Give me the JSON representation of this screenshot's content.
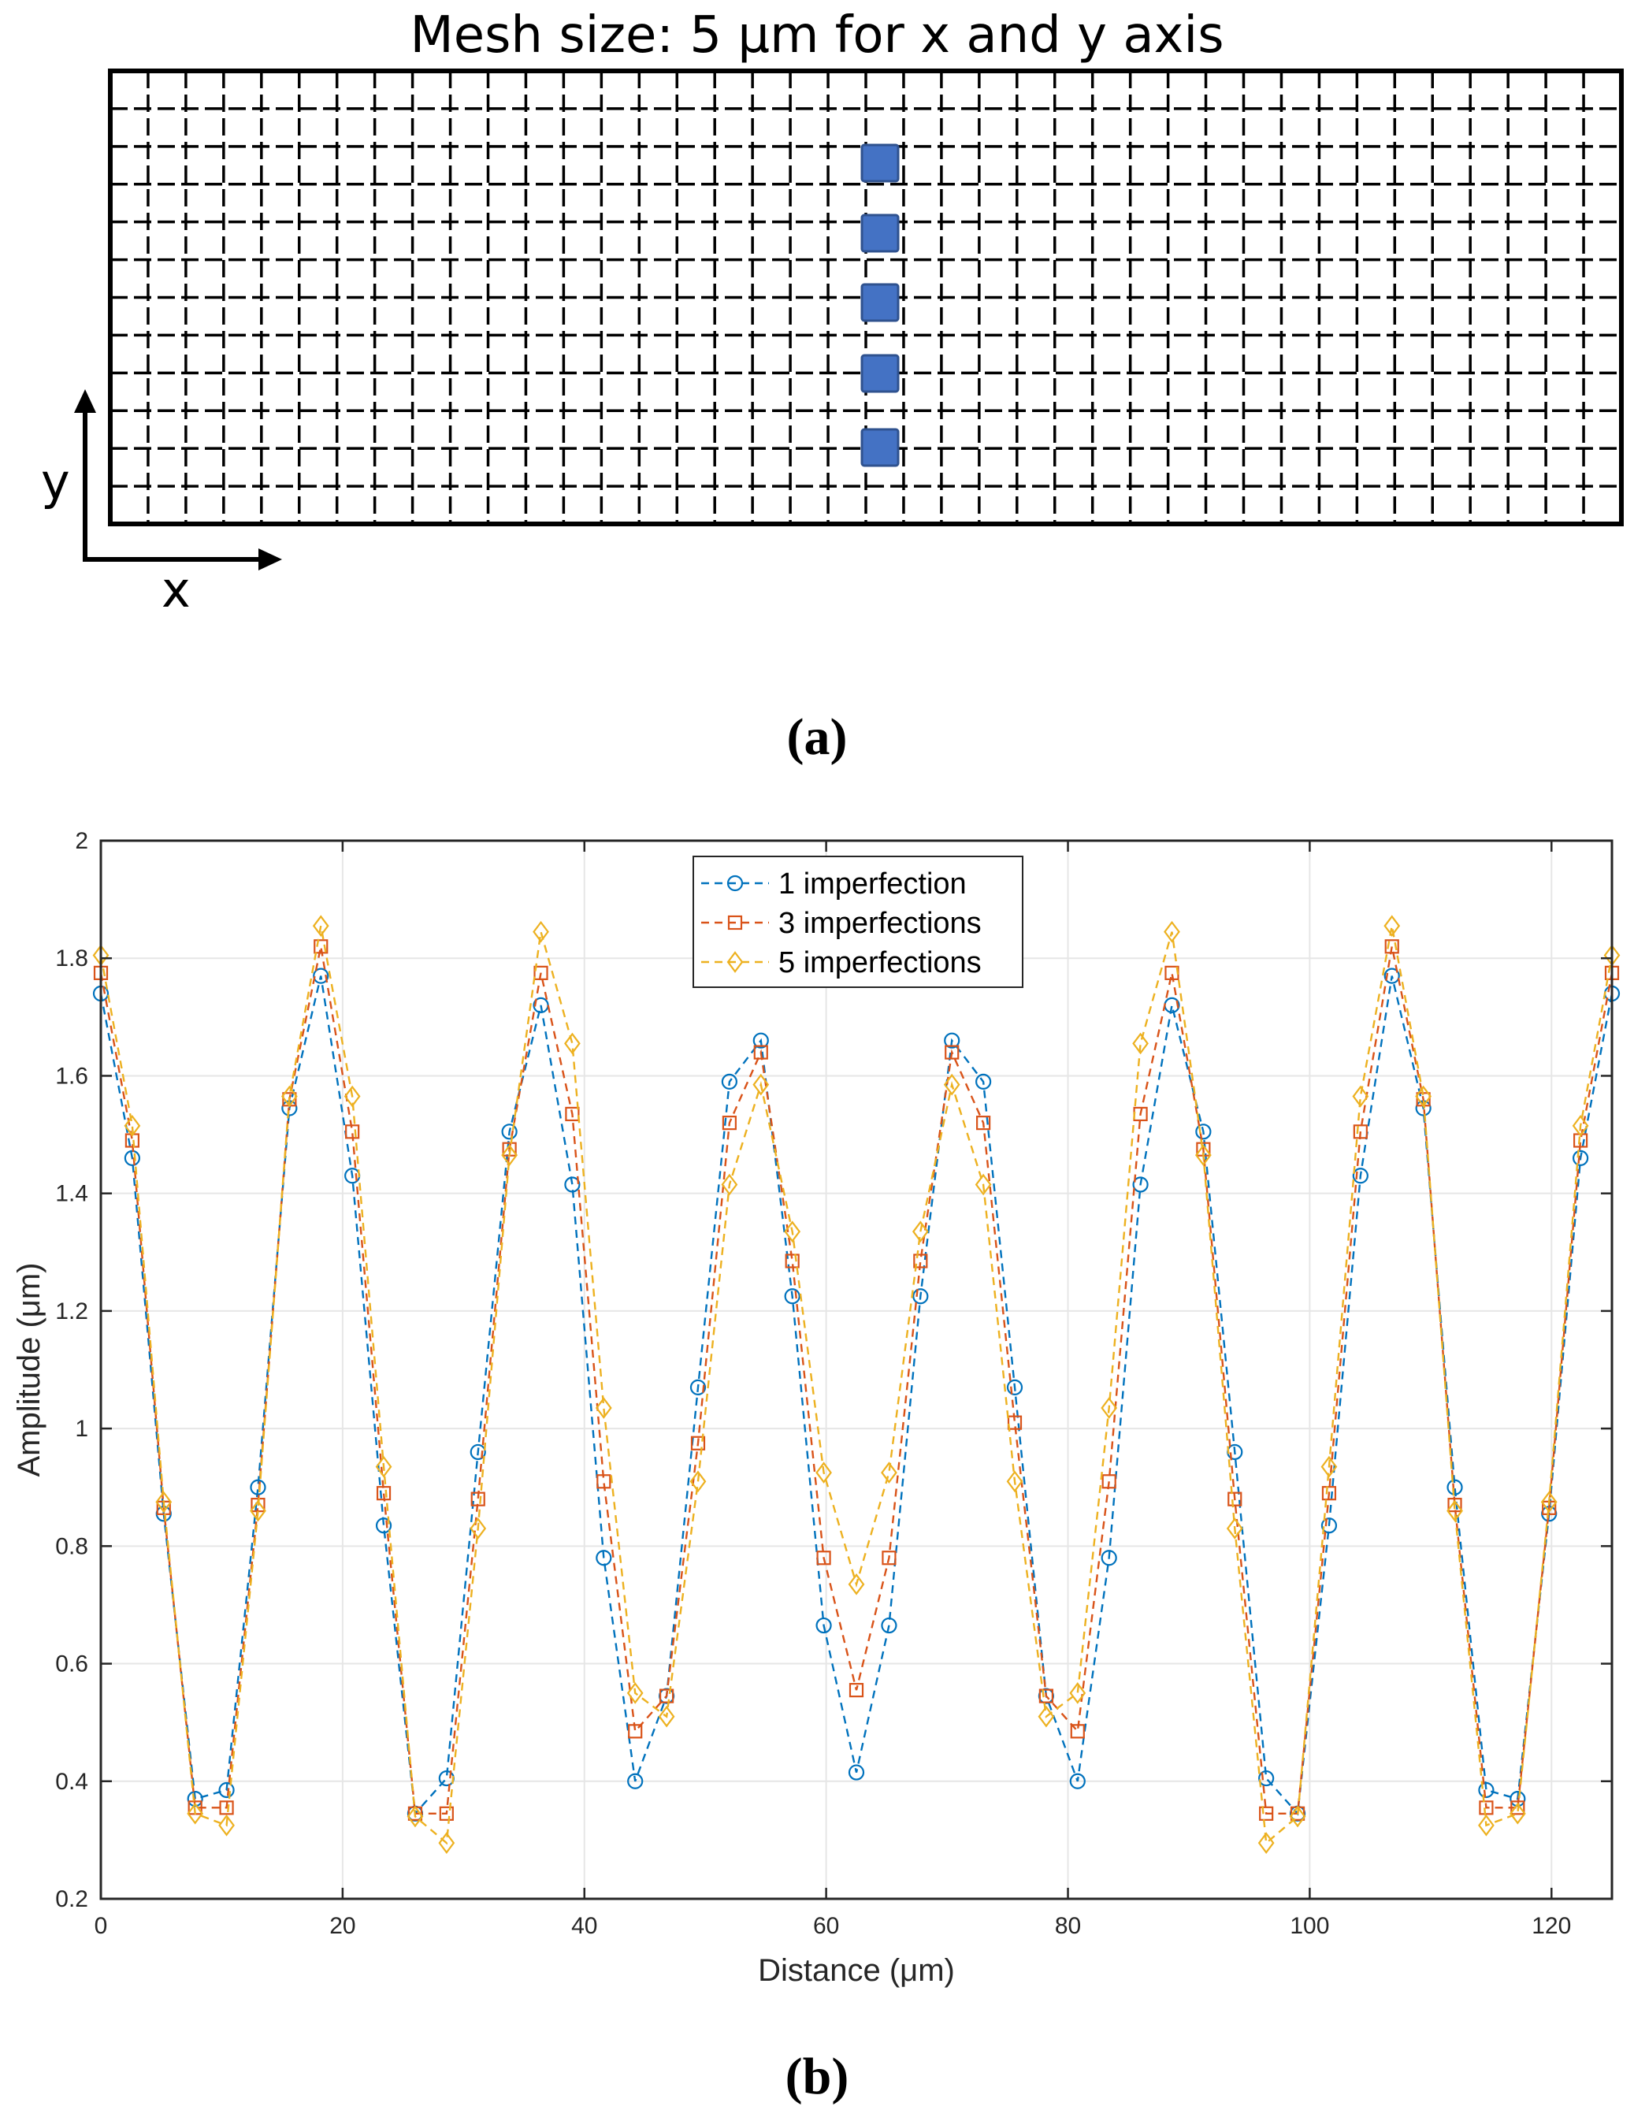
{
  "panel_a": {
    "title": "Mesh size: 5 µm for x and y axis",
    "x_axis_label": "x",
    "y_axis_label": "y",
    "panel_label": "(a)",
    "imperfection_color": "#4472c4"
  },
  "panel_b": {
    "panel_label": "(b)"
  },
  "chart_data": {
    "type": "line",
    "title": "",
    "xlabel": "Distance (μm)",
    "ylabel": "Amplitude (μm)",
    "xlim": [
      0,
      125
    ],
    "ylim": [
      0.2,
      2
    ],
    "xticks": [
      "0",
      "20",
      "40",
      "60",
      "80",
      "100",
      "120"
    ],
    "yticks": [
      "0.2",
      "0.4",
      "0.6",
      "0.8",
      "1",
      "1.2",
      "1.4",
      "1.6",
      "1.8",
      "2"
    ],
    "grid": true,
    "legend_position": "top-center",
    "x": [
      0,
      2.6,
      5.2,
      7.8,
      10.4,
      13.0,
      15.6,
      18.2,
      20.8,
      23.4,
      26.0,
      28.6,
      31.2,
      33.8,
      36.4,
      39.0,
      41.6,
      44.2,
      46.8,
      49.4,
      52.0,
      54.6,
      57.2,
      59.8,
      62.5,
      65.2,
      67.8,
      70.4,
      73.0,
      75.6,
      78.2,
      80.8,
      83.4,
      86.0,
      88.6,
      91.2,
      93.8,
      96.4,
      99.0,
      101.6,
      104.2,
      106.8,
      109.4,
      112.0,
      114.6,
      117.2,
      119.8,
      122.4,
      125.0
    ],
    "series": [
      {
        "name": "1 imperfection",
        "color": "#0072bd",
        "marker": "circle",
        "values": [
          1.74,
          1.46,
          0.855,
          0.37,
          0.385,
          0.9,
          1.545,
          1.77,
          1.43,
          0.835,
          0.345,
          0.405,
          0.96,
          1.505,
          1.72,
          1.415,
          0.78,
          0.4,
          0.545,
          1.07,
          1.59,
          1.66,
          1.225,
          0.665,
          0.415,
          0.665,
          1.225,
          1.66,
          1.59,
          1.07,
          0.545,
          0.4,
          0.78,
          1.415,
          1.72,
          1.505,
          0.96,
          0.405,
          0.345,
          0.835,
          1.43,
          1.77,
          1.545,
          0.9,
          0.385,
          0.37,
          0.855,
          1.46,
          1.74
        ]
      },
      {
        "name": "3 imperfections",
        "color": "#d95319",
        "marker": "square",
        "values": [
          1.775,
          1.49,
          0.865,
          0.355,
          0.355,
          0.87,
          1.56,
          1.82,
          1.505,
          0.89,
          0.345,
          0.345,
          0.88,
          1.475,
          1.775,
          1.535,
          0.91,
          0.485,
          0.545,
          0.975,
          1.52,
          1.64,
          1.285,
          0.78,
          0.555,
          0.78,
          1.285,
          1.64,
          1.52,
          1.01,
          0.545,
          0.485,
          0.91,
          1.535,
          1.775,
          1.475,
          0.88,
          0.345,
          0.345,
          0.89,
          1.505,
          1.82,
          1.56,
          0.87,
          0.355,
          0.355,
          0.865,
          1.49,
          1.775
        ]
      },
      {
        "name": "5 imperfections",
        "color": "#edb120",
        "marker": "diamond",
        "values": [
          1.805,
          1.515,
          0.875,
          0.345,
          0.325,
          0.86,
          1.565,
          1.855,
          1.565,
          0.935,
          0.34,
          0.295,
          0.83,
          1.465,
          1.845,
          1.655,
          1.035,
          0.55,
          0.51,
          0.91,
          1.415,
          1.585,
          1.335,
          0.925,
          0.735,
          0.925,
          1.335,
          1.585,
          1.415,
          0.91,
          0.51,
          0.55,
          1.035,
          1.655,
          1.845,
          1.465,
          0.83,
          0.295,
          0.34,
          0.935,
          1.565,
          1.855,
          1.565,
          0.86,
          0.325,
          0.345,
          0.875,
          1.515,
          1.805
        ]
      }
    ]
  }
}
